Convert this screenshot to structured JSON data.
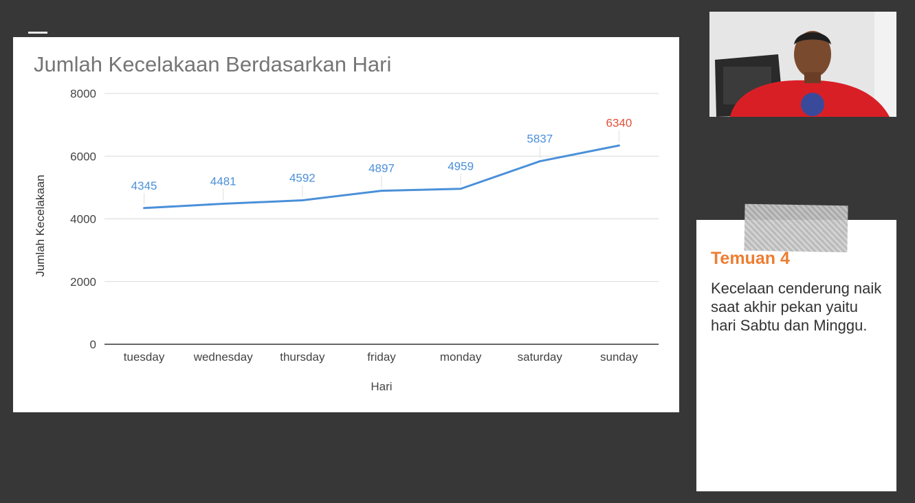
{
  "slide": {
    "note": {
      "title": "Temuan 4",
      "text": "Kecelaan cenderung naik saat akhir pekan yaitu hari Sabtu dan Minggu."
    }
  },
  "colors": {
    "background": "#373737",
    "line": "#4a90d9",
    "highlight_label": "#e0503a",
    "note_title": "#ed7d31"
  },
  "icons": {
    "video": "webcam-feed"
  },
  "chart_data": {
    "type": "line",
    "title": "Jumlah Kecelakaan Berdasarkan Hari",
    "xlabel": "Hari",
    "ylabel": "Jumlah Kecelakaan",
    "categories": [
      "tuesday",
      "wednesday",
      "thursday",
      "friday",
      "monday",
      "saturday",
      "sunday"
    ],
    "values": [
      4345,
      4481,
      4592,
      4897,
      4959,
      5837,
      6340
    ],
    "ylim": [
      0,
      8000
    ],
    "yticks": [
      "0",
      "2000",
      "4000",
      "6000",
      "8000"
    ],
    "grid": true,
    "legend": "none"
  }
}
